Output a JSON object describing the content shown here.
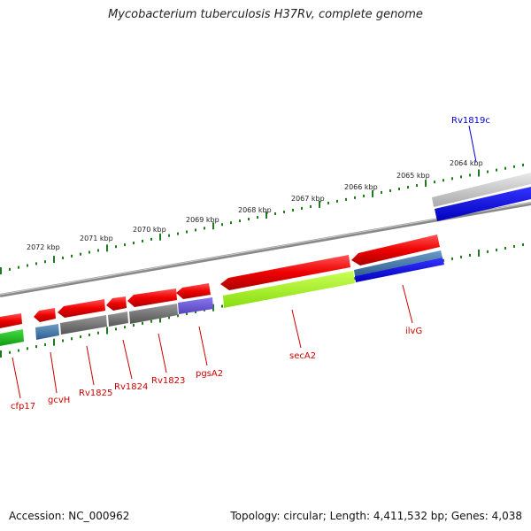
{
  "title": "Mycobacterium tuberculosis H37Rv, complete genome",
  "footer": {
    "accession": "Accession: NC_000962",
    "topology": "Topology: circular; Length: 4,411,532 bp; Genes: 4,038"
  },
  "scale": {
    "labels": [
      "2072 kbp",
      "2071 kbp",
      "2070 kbp",
      "2069 kbp",
      "2068 kbp",
      "2067 kbp",
      "2066 kbp",
      "2065 kbp",
      "2064 kbp"
    ]
  },
  "genes": {
    "labels": [
      "cfp17",
      "gcvH",
      "Rv1825",
      "Rv1824",
      "Rv1823",
      "pgsA2",
      "secA2",
      "ilvG",
      "Rv1819c"
    ]
  },
  "colors": {
    "gene_forward": "#ee1111",
    "tick": "#1f7a1f",
    "backbone": "#888888",
    "reverse_gene": "#0000ee",
    "label_red": "#cc0000",
    "label_blue": "#0000cc"
  }
}
